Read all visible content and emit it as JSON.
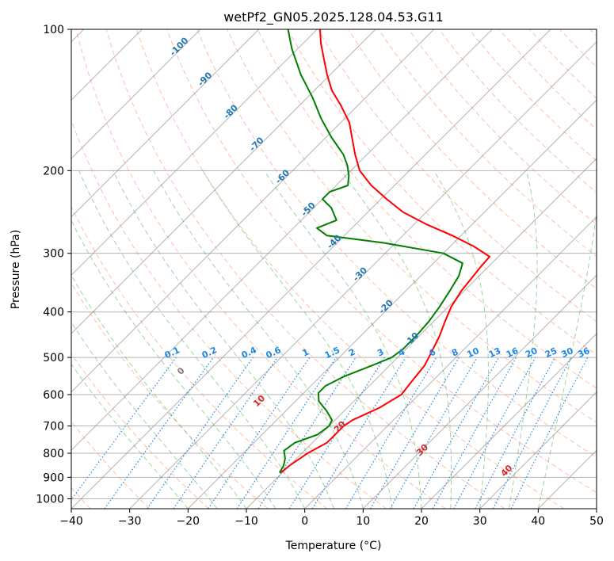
{
  "chart_data": {
    "type": "line",
    "chart_kind": "skew-T log-P diagram",
    "title": "wetPf2_GN05.2025.128.04.53.G11",
    "xlabel": "Temperature (°C)",
    "ylabel": "Pressure (hPa)",
    "xlim": [
      -40,
      50
    ],
    "ylim": [
      1050,
      100
    ],
    "y_scale": "log",
    "x_ticks": [
      -40,
      -30,
      -20,
      -10,
      0,
      10,
      20,
      30,
      40,
      50
    ],
    "y_ticks": [
      100,
      200,
      300,
      400,
      500,
      600,
      700,
      800,
      900,
      1000
    ],
    "grid": true,
    "colors": {
      "temperature": "#ff0000",
      "dewpoint": "#008000",
      "isotherm": "#808080",
      "dry_adiabat": "#ff7f50",
      "moist_adiabat": "#2ca02c",
      "mixing_ratio": "#1e88e5",
      "iso_label_blue": "#1f77b4",
      "iso_label_red": "#d62728",
      "frame": "#000000"
    },
    "series": [
      {
        "name": "Temperature",
        "points": [
          [
            -10.3,
            880
          ],
          [
            -10.0,
            850
          ],
          [
            -9.0,
            800
          ],
          [
            -7.5,
            760
          ],
          [
            -7.5,
            720
          ],
          [
            -7.5,
            700
          ],
          [
            -7.0,
            680
          ],
          [
            -4.5,
            640
          ],
          [
            -3.0,
            600
          ],
          [
            -3.5,
            560
          ],
          [
            -4.0,
            520
          ],
          [
            -5.0,
            490
          ],
          [
            -6.5,
            450
          ],
          [
            -8.0,
            420
          ],
          [
            -9.5,
            390
          ],
          [
            -10.5,
            360
          ],
          [
            -11.0,
            335
          ],
          [
            -11.3,
            320
          ],
          [
            -11.5,
            305
          ],
          [
            -16.0,
            290
          ],
          [
            -21.5,
            275
          ],
          [
            -28.0,
            260
          ],
          [
            -34.0,
            245
          ],
          [
            -39.0,
            230
          ],
          [
            -44.0,
            215
          ],
          [
            -48.5,
            200
          ],
          [
            -52.0,
            185
          ],
          [
            -55.5,
            170
          ],
          [
            -58.5,
            158
          ],
          [
            -63.0,
            145
          ],
          [
            -67.0,
            135
          ],
          [
            -70.5,
            125
          ],
          [
            -74.0,
            115
          ],
          [
            -77.0,
            107
          ],
          [
            -79.5,
            100
          ]
        ]
      },
      {
        "name": "Dewpoint",
        "points": [
          [
            -10.5,
            880
          ],
          [
            -11.0,
            850
          ],
          [
            -12.0,
            820
          ],
          [
            -13.5,
            790
          ],
          [
            -13.0,
            760
          ],
          [
            -10.5,
            730
          ],
          [
            -10.0,
            700
          ],
          [
            -10.5,
            680
          ],
          [
            -13.0,
            650
          ],
          [
            -16.0,
            620
          ],
          [
            -17.5,
            595
          ],
          [
            -17.5,
            575
          ],
          [
            -16.0,
            550
          ],
          [
            -13.0,
            520
          ],
          [
            -11.0,
            500
          ],
          [
            -10.5,
            480
          ],
          [
            -10.5,
            450
          ],
          [
            -10.8,
            420
          ],
          [
            -11.5,
            390
          ],
          [
            -12.5,
            360
          ],
          [
            -13.5,
            335
          ],
          [
            -15.0,
            315
          ],
          [
            -20.0,
            300
          ],
          [
            -32.0,
            285
          ],
          [
            -43.0,
            275
          ],
          [
            -46.0,
            265
          ],
          [
            -44.0,
            255
          ],
          [
            -47.0,
            240
          ],
          [
            -50.0,
            230
          ],
          [
            -50.0,
            222
          ],
          [
            -48.0,
            215
          ],
          [
            -49.5,
            205
          ],
          [
            -51.5,
            195
          ],
          [
            -54.0,
            185
          ],
          [
            -59.0,
            170
          ],
          [
            -64.0,
            155
          ],
          [
            -69.0,
            140
          ],
          [
            -75.0,
            125
          ],
          [
            -81.0,
            110
          ],
          [
            -85.0,
            100
          ]
        ]
      }
    ],
    "dry_adiabat_labels": [
      "0",
      "10",
      "20",
      "30",
      "40"
    ],
    "mixing_ratio_labels": [
      "0.1",
      "0.2",
      "0.4",
      "0.6",
      "1",
      "1.5",
      "2",
      "3",
      "4",
      "6",
      "8",
      "10",
      "13",
      "16",
      "20",
      "25",
      "30",
      "36"
    ],
    "temperature_labels": [
      "-100",
      "-90",
      "-80",
      "-70",
      "-60",
      "-50",
      "-40",
      "-30",
      "-20",
      "-10"
    ]
  }
}
